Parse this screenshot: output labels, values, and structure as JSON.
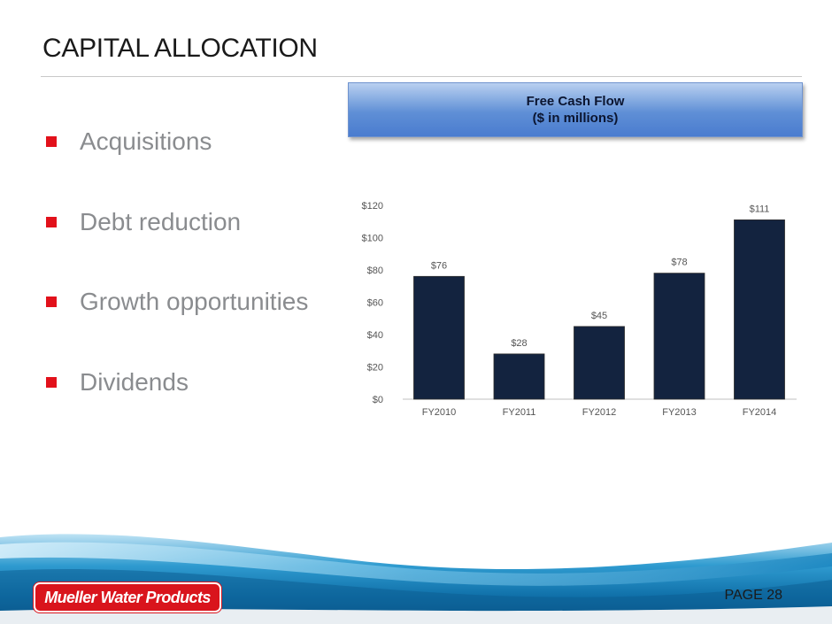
{
  "slide": {
    "title": "CAPITAL ALLOCATION",
    "page_label": "PAGE 28",
    "logo_text": "Mueller Water Products"
  },
  "bullets": [
    "Acquisitions",
    "Debt reduction",
    "Growth opportunities",
    "Dividends"
  ],
  "callout": {
    "line1": "Free Cash Flow",
    "line2": "($ in millions)"
  },
  "colors": {
    "bar": "#13233f",
    "bullet": "#e2111b",
    "logo": "#d9141c"
  },
  "chart_data": {
    "type": "bar",
    "categories": [
      "FY2010",
      "FY2011",
      "FY2012",
      "FY2013",
      "FY2014"
    ],
    "values": [
      76,
      28,
      45,
      78,
      111
    ],
    "data_labels": [
      "$76",
      "$28",
      "$45",
      "$78",
      "$111"
    ],
    "yticks": [
      "$0",
      "$20",
      "$40",
      "$60",
      "$80",
      "$100",
      "$120"
    ],
    "ylim": [
      0,
      120
    ],
    "grid": false,
    "legend": "none"
  }
}
